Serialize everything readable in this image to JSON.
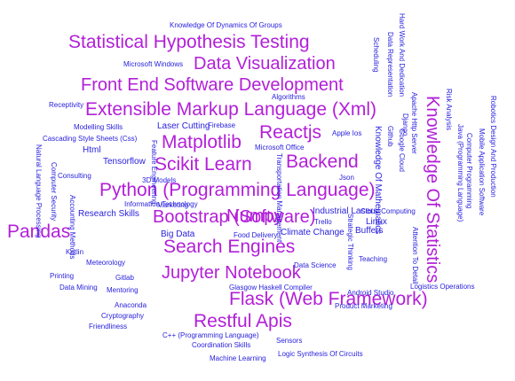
{
  "colors": {
    "large_word": "#b21fd8",
    "small_word": "#2a22dd",
    "background": "#ffffff"
  },
  "words": [
    {
      "text": "Statistical Hypothesis Testing",
      "emphasis": "large"
    },
    {
      "text": "Data Visualization",
      "emphasis": "large"
    },
    {
      "text": "Front End Software Development",
      "emphasis": "large"
    },
    {
      "text": "Extensible Markup Language (Xml)",
      "emphasis": "large"
    },
    {
      "text": "Matplotlib",
      "emphasis": "large"
    },
    {
      "text": "Reactjs",
      "emphasis": "large"
    },
    {
      "text": "Scikit Learn",
      "emphasis": "large"
    },
    {
      "text": "Backend",
      "emphasis": "large"
    },
    {
      "text": "Python (Programming Language)",
      "emphasis": "large"
    },
    {
      "text": "Bootstrap (Software)",
      "emphasis": "large"
    },
    {
      "text": "Numpy",
      "emphasis": "large"
    },
    {
      "text": "Pandas",
      "emphasis": "large"
    },
    {
      "text": "Search Engines",
      "emphasis": "large"
    },
    {
      "text": "Jupyter Notebook",
      "emphasis": "large"
    },
    {
      "text": "Flask (Web Framework)",
      "emphasis": "large"
    },
    {
      "text": "Restful Apis",
      "emphasis": "large"
    },
    {
      "text": "Knowledge Of Statistics",
      "emphasis": "large"
    },
    {
      "text": "Knowledge Of Dynamics Of Groups",
      "emphasis": "small"
    },
    {
      "text": "Microsoft Windows",
      "emphasis": "small"
    },
    {
      "text": "Algorithms",
      "emphasis": "small"
    },
    {
      "text": "Receptivity",
      "emphasis": "small"
    },
    {
      "text": "Modelling Skills",
      "emphasis": "small"
    },
    {
      "text": "Laser Cutting",
      "emphasis": "small"
    },
    {
      "text": "Firebase",
      "emphasis": "small"
    },
    {
      "text": "Cascading Style Sheets (Css)",
      "emphasis": "small"
    },
    {
      "text": "Html",
      "emphasis": "small"
    },
    {
      "text": "Microsoft Office",
      "emphasis": "small"
    },
    {
      "text": "Apple Ios",
      "emphasis": "small"
    },
    {
      "text": "Tensorflow",
      "emphasis": "small"
    },
    {
      "text": "Consulting",
      "emphasis": "small"
    },
    {
      "text": "3D Models",
      "emphasis": "small"
    },
    {
      "text": "Json",
      "emphasis": "small"
    },
    {
      "text": "Information Technology",
      "emphasis": "small"
    },
    {
      "text": "Marketing",
      "emphasis": "small"
    },
    {
      "text": "Research Skills",
      "emphasis": "small"
    },
    {
      "text": "Industrial Lasers",
      "emphasis": "small"
    },
    {
      "text": "Cloud Computing",
      "emphasis": "small"
    },
    {
      "text": "Trello",
      "emphasis": "small"
    },
    {
      "text": "Linux",
      "emphasis": "small"
    },
    {
      "text": "Buffers",
      "emphasis": "small"
    },
    {
      "text": "Climate Change",
      "emphasis": "small"
    },
    {
      "text": "Big Data",
      "emphasis": "small"
    },
    {
      "text": "Food Delivery",
      "emphasis": "small"
    },
    {
      "text": "Kotlin",
      "emphasis": "small"
    },
    {
      "text": "Meteorology",
      "emphasis": "small"
    },
    {
      "text": "Teaching",
      "emphasis": "small"
    },
    {
      "text": "Data Science",
      "emphasis": "small"
    },
    {
      "text": "Printing",
      "emphasis": "small"
    },
    {
      "text": "Gitlab",
      "emphasis": "small"
    },
    {
      "text": "Data Mining",
      "emphasis": "small"
    },
    {
      "text": "Mentoring",
      "emphasis": "small"
    },
    {
      "text": "Glasgow Haskell Compiler",
      "emphasis": "small"
    },
    {
      "text": "Logistics Operations",
      "emphasis": "small"
    },
    {
      "text": "Android Studio",
      "emphasis": "small"
    },
    {
      "text": "Anaconda",
      "emphasis": "small"
    },
    {
      "text": "Product Marketing",
      "emphasis": "small"
    },
    {
      "text": "Cryptography",
      "emphasis": "small"
    },
    {
      "text": "Friendliness",
      "emphasis": "small"
    },
    {
      "text": "C++ (Programming Language)",
      "emphasis": "small"
    },
    {
      "text": "Sensors",
      "emphasis": "small"
    },
    {
      "text": "Coordination Skills",
      "emphasis": "small"
    },
    {
      "text": "Machine Learning",
      "emphasis": "small"
    },
    {
      "text": "Logic Synthesis Of Circuits",
      "emphasis": "small"
    },
    {
      "text": "Feature Engineering",
      "emphasis": "small"
    },
    {
      "text": "Knowledge Of Mathematics",
      "emphasis": "small"
    },
    {
      "text": "Transportation Management",
      "emphasis": "small"
    },
    {
      "text": "Natural Language Processing",
      "emphasis": "small"
    },
    {
      "text": "Computer Security",
      "emphasis": "small"
    },
    {
      "text": "Accounting Methods",
      "emphasis": "small"
    },
    {
      "text": "Strategic Thinking",
      "emphasis": "small"
    },
    {
      "text": "Attention To Detail",
      "emphasis": "small"
    },
    {
      "text": "Hard Work And Dedication",
      "emphasis": "small"
    },
    {
      "text": "Data Representation",
      "emphasis": "small"
    },
    {
      "text": "Scheduling",
      "emphasis": "small"
    },
    {
      "text": "Apache Http Server",
      "emphasis": "small"
    },
    {
      "text": "Django",
      "emphasis": "small"
    },
    {
      "text": "Github",
      "emphasis": "small"
    },
    {
      "text": "Google Cloud",
      "emphasis": "small"
    },
    {
      "text": "Risk Analysis",
      "emphasis": "small"
    },
    {
      "text": "Java (Programming Language)",
      "emphasis": "small"
    },
    {
      "text": "Computer Programming",
      "emphasis": "small"
    },
    {
      "text": "Robotics Design And Production",
      "emphasis": "small"
    },
    {
      "text": "Mobile Application Software",
      "emphasis": "small"
    }
  ]
}
